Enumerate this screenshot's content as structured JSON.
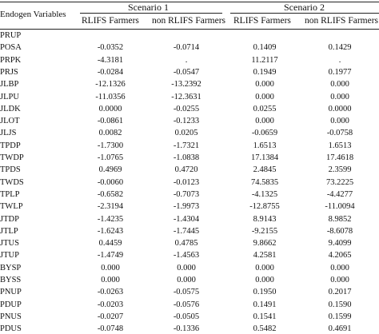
{
  "header": {
    "endogen_label": "Endogen Variables",
    "scenario1": "Scenario 1",
    "scenario2": "Scenario 2",
    "col_rlifs": "RLIFS Farmers",
    "col_non_rlifs": "non RLIFS Farmers"
  },
  "rows": [
    {
      "name": "PRUP",
      "s1_rlifs": "",
      "s1_non": "",
      "s2_rlifs": "",
      "s2_non": ""
    },
    {
      "name": "POSA",
      "s1_rlifs": "-0.0352",
      "s1_non": "-0.0714",
      "s2_rlifs": "0.1409",
      "s2_non": "0.1429"
    },
    {
      "name": "PRPK",
      "s1_rlifs": "-4.3181",
      "s1_non": ".",
      "s2_rlifs": "11.2117",
      "s2_non": "."
    },
    {
      "name": "PRJS",
      "s1_rlifs": "-0.0284",
      "s1_non": "-0.0547",
      "s2_rlifs": "0.1949",
      "s2_non": "0.1977"
    },
    {
      "name": "JLBP",
      "s1_rlifs": "-12.1326",
      "s1_non": "-13.2392",
      "s2_rlifs": "0.000",
      "s2_non": "0.000"
    },
    {
      "name": "JLPU",
      "s1_rlifs": "-11.0356",
      "s1_non": "-12.3631",
      "s2_rlifs": "0.000",
      "s2_non": "0.000"
    },
    {
      "name": "JLDK",
      "s1_rlifs": "0.0000",
      "s1_non": "-0.0255",
      "s2_rlifs": "0.0255",
      "s2_non": "0.0000"
    },
    {
      "name": "JLOT",
      "s1_rlifs": "-0.0861",
      "s1_non": "-0.1233",
      "s2_rlifs": "0.000",
      "s2_non": "0.000"
    },
    {
      "name": "JLJS",
      "s1_rlifs": "0.0082",
      "s1_non": "0.0205",
      "s2_rlifs": "-0.0659",
      "s2_non": "-0.0758"
    },
    {
      "name": "TPDP",
      "s1_rlifs": "-1.7300",
      "s1_non": "-1.7321",
      "s2_rlifs": "1.6513",
      "s2_non": "1.6513"
    },
    {
      "name": "TWDP",
      "s1_rlifs": "-1.0765",
      "s1_non": "-1.0838",
      "s2_rlifs": "17.1384",
      "s2_non": "17.4618"
    },
    {
      "name": "TPDS",
      "s1_rlifs": "0.4969",
      "s1_non": "0.4720",
      "s2_rlifs": "2.4845",
      "s2_non": "2.3599"
    },
    {
      "name": "TWDS",
      "s1_rlifs": "-0.0060",
      "s1_non": "-0.0123",
      "s2_rlifs": "74.5835",
      "s2_non": "73.2225"
    },
    {
      "name": "TPLP",
      "s1_rlifs": "-0.6582",
      "s1_non": "-0.7073",
      "s2_rlifs": "-4.1325",
      "s2_non": "-4.4277"
    },
    {
      "name": "TWLP",
      "s1_rlifs": "-2.3194",
      "s1_non": "-1.9973",
      "s2_rlifs": "-12.8755",
      "s2_non": "-11.0094"
    },
    {
      "name": "JTDP",
      "s1_rlifs": "-1.4235",
      "s1_non": "-1.4304",
      "s2_rlifs": "8.9143",
      "s2_non": "8.9852"
    },
    {
      "name": "JTLP",
      "s1_rlifs": "-1.6243",
      "s1_non": "-1.7445",
      "s2_rlifs": "-9.2155",
      "s2_non": "-8.6078"
    },
    {
      "name": "JTUS",
      "s1_rlifs": "0.4459",
      "s1_non": "0.4785",
      "s2_rlifs": "9.8662",
      "s2_non": "9.4099"
    },
    {
      "name": "JTUP",
      "s1_rlifs": "-1.4749",
      "s1_non": "-1.4563",
      "s2_rlifs": "4.2581",
      "s2_non": "4.2065"
    },
    {
      "name": "BYSP",
      "s1_rlifs": "0.000",
      "s1_non": "0.000",
      "s2_rlifs": "0.000",
      "s2_non": "0.000"
    },
    {
      "name": "BYSS",
      "s1_rlifs": "0.000",
      "s1_non": "0.000",
      "s2_rlifs": "0.000",
      "s2_non": "0.000"
    },
    {
      "name": "PNUP",
      "s1_rlifs": "-0.0263",
      "s1_non": "-0.0575",
      "s2_rlifs": "0.1950",
      "s2_non": "0.2017"
    },
    {
      "name": "PDUP",
      "s1_rlifs": "-0.0203",
      "s1_non": "-0.0576",
      "s2_rlifs": "0.1491",
      "s2_non": "0.1590"
    },
    {
      "name": "PNUS",
      "s1_rlifs": "-0.0207",
      "s1_non": "-0.0505",
      "s2_rlifs": "0.1541",
      "s2_non": "0.1599"
    },
    {
      "name": "PDUS",
      "s1_rlifs": "-0.0748",
      "s1_non": "-0.1336",
      "s2_rlifs": "0.5482",
      "s2_non": "0.4691"
    }
  ]
}
